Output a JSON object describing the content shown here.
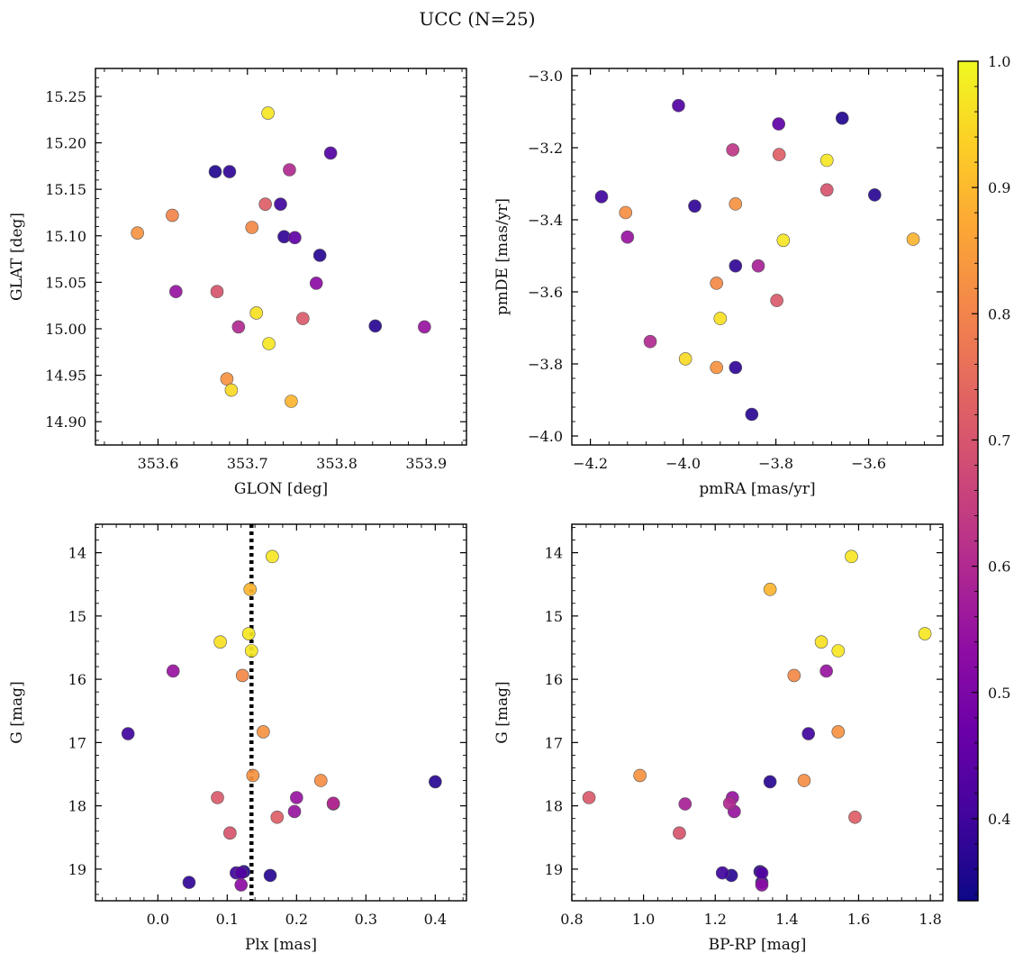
{
  "figure": {
    "suptitle": "UCC (N=25)",
    "colormap": "plasma",
    "colorbar": {
      "min": 0.335,
      "max": 1.0,
      "ticks": [
        0.4,
        0.5,
        0.6,
        0.7,
        0.8,
        0.9,
        1.0
      ],
      "tick_labels": [
        "0.4",
        "0.5",
        "0.6",
        "0.7",
        "0.8",
        "0.9",
        "1.0"
      ]
    }
  },
  "chart_data": [
    {
      "type": "scatter",
      "xlabel": "GLON [deg]",
      "ylabel": "GLAT [deg]",
      "xlim": [
        353.53,
        353.945
      ],
      "ylim": [
        14.875,
        15.28
      ],
      "xticks": [
        353.6,
        353.7,
        353.8,
        353.9
      ],
      "xtick_labels": [
        "353.6",
        "353.7",
        "353.8",
        "353.9"
      ],
      "yticks": [
        14.9,
        14.95,
        15.0,
        15.05,
        15.1,
        15.15,
        15.2,
        15.25
      ],
      "ytick_labels": [
        "14.90",
        "14.95",
        "15.00",
        "15.05",
        "15.10",
        "15.15",
        "15.20",
        "15.25"
      ],
      "points": [
        {
          "x": 353.723,
          "y": 15.232,
          "c": 0.97
        },
        {
          "x": 353.664,
          "y": 15.169,
          "c": 0.36
        },
        {
          "x": 353.68,
          "y": 15.169,
          "c": 0.38
        },
        {
          "x": 353.793,
          "y": 15.189,
          "c": 0.43
        },
        {
          "x": 353.747,
          "y": 15.171,
          "c": 0.6
        },
        {
          "x": 353.72,
          "y": 15.134,
          "c": 0.72
        },
        {
          "x": 353.737,
          "y": 15.134,
          "c": 0.4
        },
        {
          "x": 353.616,
          "y": 15.122,
          "c": 0.8
        },
        {
          "x": 353.705,
          "y": 15.109,
          "c": 0.81
        },
        {
          "x": 353.577,
          "y": 15.103,
          "c": 0.83
        },
        {
          "x": 353.741,
          "y": 15.099,
          "c": 0.38
        },
        {
          "x": 353.753,
          "y": 15.098,
          "c": 0.45
        },
        {
          "x": 353.781,
          "y": 15.079,
          "c": 0.37
        },
        {
          "x": 353.777,
          "y": 15.049,
          "c": 0.53
        },
        {
          "x": 353.62,
          "y": 15.04,
          "c": 0.55
        },
        {
          "x": 353.666,
          "y": 15.04,
          "c": 0.7
        },
        {
          "x": 353.71,
          "y": 15.017,
          "c": 0.96
        },
        {
          "x": 353.762,
          "y": 15.011,
          "c": 0.71
        },
        {
          "x": 353.69,
          "y": 15.002,
          "c": 0.6
        },
        {
          "x": 353.843,
          "y": 15.003,
          "c": 0.37
        },
        {
          "x": 353.898,
          "y": 15.002,
          "c": 0.55
        },
        {
          "x": 353.724,
          "y": 14.984,
          "c": 0.97
        },
        {
          "x": 353.677,
          "y": 14.946,
          "c": 0.83
        },
        {
          "x": 353.682,
          "y": 14.934,
          "c": 0.95
        },
        {
          "x": 353.749,
          "y": 14.922,
          "c": 0.89
        }
      ]
    },
    {
      "type": "scatter",
      "xlabel": "pmRA [mas/yr]",
      "ylabel": "pmDE [mas/yr]",
      "xlim": [
        -4.24,
        -3.44
      ],
      "ylim": [
        -4.025,
        -2.98
      ],
      "xticks": [
        -4.2,
        -4.0,
        -3.8,
        -3.6
      ],
      "xtick_labels": [
        "−4.2",
        "−4.0",
        "−3.8",
        "−3.6"
      ],
      "yticks": [
        -4.0,
        -3.8,
        -3.6,
        -3.4,
        -3.2,
        -3.0
      ],
      "ytick_labels": [
        "−4.0",
        "−3.8",
        "−3.6",
        "−3.4",
        "−3.2",
        "−3.0"
      ],
      "points": [
        {
          "x": -4.01,
          "y": -3.083,
          "c": 0.43
        },
        {
          "x": -3.794,
          "y": -3.134,
          "c": 0.45
        },
        {
          "x": -3.657,
          "y": -3.118,
          "c": 0.36
        },
        {
          "x": -3.893,
          "y": -3.206,
          "c": 0.63
        },
        {
          "x": -3.793,
          "y": -3.219,
          "c": 0.72
        },
        {
          "x": -3.69,
          "y": -3.235,
          "c": 0.97
        },
        {
          "x": -3.69,
          "y": -3.317,
          "c": 0.7
        },
        {
          "x": -4.176,
          "y": -3.336,
          "c": 0.4
        },
        {
          "x": -3.975,
          "y": -3.362,
          "c": 0.38
        },
        {
          "x": -3.887,
          "y": -3.356,
          "c": 0.83
        },
        {
          "x": -3.587,
          "y": -3.331,
          "c": 0.37
        },
        {
          "x": -4.124,
          "y": -3.38,
          "c": 0.82
        },
        {
          "x": -4.12,
          "y": -3.448,
          "c": 0.55
        },
        {
          "x": -3.784,
          "y": -3.457,
          "c": 0.97
        },
        {
          "x": -3.504,
          "y": -3.454,
          "c": 0.89
        },
        {
          "x": -3.887,
          "y": -3.528,
          "c": 0.38
        },
        {
          "x": -3.838,
          "y": -3.528,
          "c": 0.58
        },
        {
          "x": -3.928,
          "y": -3.576,
          "c": 0.81
        },
        {
          "x": -3.798,
          "y": -3.624,
          "c": 0.71
        },
        {
          "x": -3.92,
          "y": -3.674,
          "c": 0.96
        },
        {
          "x": -4.071,
          "y": -3.738,
          "c": 0.6
        },
        {
          "x": -3.995,
          "y": -3.786,
          "c": 0.95
        },
        {
          "x": -3.928,
          "y": -3.81,
          "c": 0.83
        },
        {
          "x": -3.887,
          "y": -3.81,
          "c": 0.38
        },
        {
          "x": -3.852,
          "y": -3.94,
          "c": 0.37
        }
      ]
    },
    {
      "type": "scatter",
      "xlabel": "Plx [mas]",
      "ylabel": "G [mag]",
      "xlim": [
        -0.09,
        0.445
      ],
      "ylim": [
        19.5,
        13.55
      ],
      "xticks": [
        0.0,
        0.1,
        0.2,
        0.3,
        0.4
      ],
      "xtick_labels": [
        "0.0",
        "0.1",
        "0.2",
        "0.3",
        "0.4"
      ],
      "yticks": [
        14,
        15,
        16,
        17,
        18,
        19
      ],
      "ytick_labels": [
        "14",
        "15",
        "16",
        "17",
        "18",
        "19"
      ],
      "vline": 0.135,
      "points": [
        {
          "x": 0.165,
          "y": 14.06,
          "c": 0.97
        },
        {
          "x": 0.133,
          "y": 14.58,
          "c": 0.89
        },
        {
          "x": 0.131,
          "y": 15.28,
          "c": 0.97
        },
        {
          "x": 0.09,
          "y": 15.41,
          "c": 0.96
        },
        {
          "x": 0.135,
          "y": 15.55,
          "c": 0.97
        },
        {
          "x": 0.022,
          "y": 15.87,
          "c": 0.55
        },
        {
          "x": 0.122,
          "y": 15.94,
          "c": 0.81
        },
        {
          "x": 0.152,
          "y": 16.83,
          "c": 0.83
        },
        {
          "x": -0.043,
          "y": 16.86,
          "c": 0.4
        },
        {
          "x": 0.137,
          "y": 17.52,
          "c": 0.83
        },
        {
          "x": 0.235,
          "y": 17.6,
          "c": 0.82
        },
        {
          "x": 0.4,
          "y": 17.62,
          "c": 0.37
        },
        {
          "x": 0.086,
          "y": 17.87,
          "c": 0.71
        },
        {
          "x": 0.2,
          "y": 17.87,
          "c": 0.55
        },
        {
          "x": 0.253,
          "y": 17.97,
          "c": 0.58
        },
        {
          "x": 0.253,
          "y": 17.96,
          "c": 0.6
        },
        {
          "x": 0.197,
          "y": 18.09,
          "c": 0.55
        },
        {
          "x": 0.172,
          "y": 18.18,
          "c": 0.72
        },
        {
          "x": 0.104,
          "y": 18.43,
          "c": 0.7
        },
        {
          "x": 0.124,
          "y": 19.04,
          "c": 0.36
        },
        {
          "x": 0.113,
          "y": 19.06,
          "c": 0.4
        },
        {
          "x": 0.162,
          "y": 19.1,
          "c": 0.37
        },
        {
          "x": 0.12,
          "y": 19.06,
          "c": 0.43
        },
        {
          "x": 0.045,
          "y": 19.21,
          "c": 0.38
        },
        {
          "x": 0.12,
          "y": 19.25,
          "c": 0.53
        }
      ]
    },
    {
      "type": "scatter",
      "xlabel": "BP-RP [mag]",
      "ylabel": "G [mag]",
      "xlim": [
        0.8,
        1.835
      ],
      "ylim": [
        19.5,
        13.55
      ],
      "xticks": [
        0.8,
        1.0,
        1.2,
        1.4,
        1.6,
        1.8
      ],
      "xtick_labels": [
        "0.8",
        "1.0",
        "1.2",
        "1.4",
        "1.6",
        "1.8"
      ],
      "yticks": [
        14,
        15,
        16,
        17,
        18,
        19
      ],
      "ytick_labels": [
        "14",
        "15",
        "16",
        "17",
        "18",
        "19"
      ],
      "points": [
        {
          "x": 1.58,
          "y": 14.06,
          "c": 0.97
        },
        {
          "x": 1.353,
          "y": 14.58,
          "c": 0.89
        },
        {
          "x": 1.785,
          "y": 15.28,
          "c": 0.97
        },
        {
          "x": 1.496,
          "y": 15.41,
          "c": 0.96
        },
        {
          "x": 1.543,
          "y": 15.55,
          "c": 0.97
        },
        {
          "x": 1.51,
          "y": 15.87,
          "c": 0.55
        },
        {
          "x": 1.42,
          "y": 15.94,
          "c": 0.81
        },
        {
          "x": 1.543,
          "y": 16.83,
          "c": 0.83
        },
        {
          "x": 1.46,
          "y": 16.86,
          "c": 0.4
        },
        {
          "x": 0.99,
          "y": 17.52,
          "c": 0.83
        },
        {
          "x": 1.448,
          "y": 17.6,
          "c": 0.82
        },
        {
          "x": 1.353,
          "y": 17.62,
          "c": 0.37
        },
        {
          "x": 0.848,
          "y": 17.87,
          "c": 0.71
        },
        {
          "x": 1.248,
          "y": 17.87,
          "c": 0.55
        },
        {
          "x": 1.116,
          "y": 17.97,
          "c": 0.58
        },
        {
          "x": 1.24,
          "y": 17.96,
          "c": 0.6
        },
        {
          "x": 1.253,
          "y": 18.09,
          "c": 0.55
        },
        {
          "x": 1.59,
          "y": 18.18,
          "c": 0.72
        },
        {
          "x": 1.1,
          "y": 18.43,
          "c": 0.7
        },
        {
          "x": 1.325,
          "y": 19.04,
          "c": 0.36
        },
        {
          "x": 1.22,
          "y": 19.06,
          "c": 0.4
        },
        {
          "x": 1.245,
          "y": 19.1,
          "c": 0.37
        },
        {
          "x": 1.33,
          "y": 19.06,
          "c": 0.43
        },
        {
          "x": 1.33,
          "y": 19.21,
          "c": 0.38
        },
        {
          "x": 1.33,
          "y": 19.25,
          "c": 0.53
        }
      ]
    }
  ]
}
